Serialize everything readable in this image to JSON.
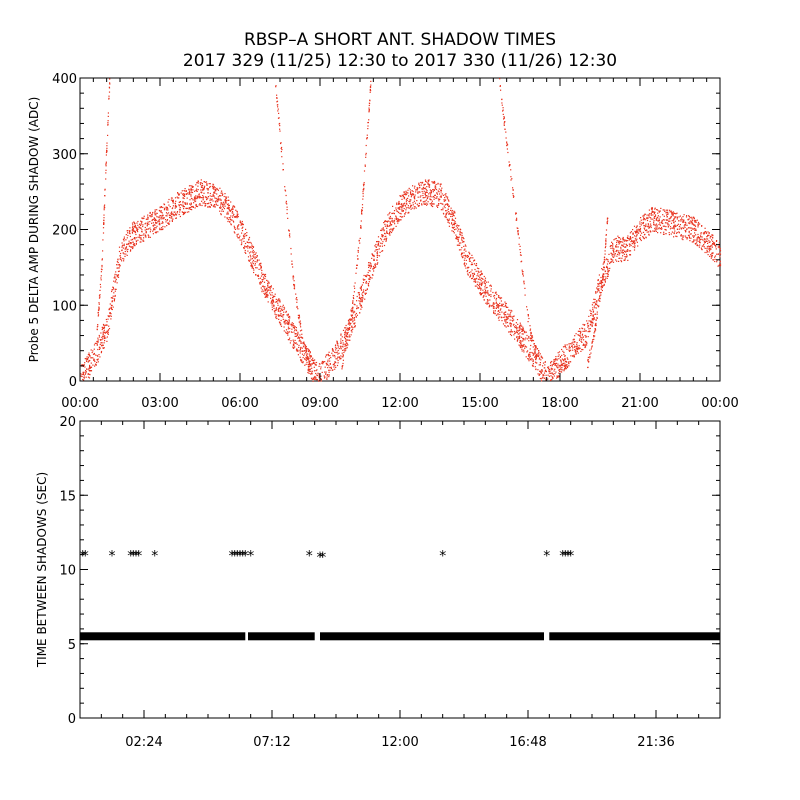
{
  "title": "RBSP–A SHORT ANT. SHADOW TIMES",
  "subtitle": "2017 329 (11/25) 12:30 to 2017 330 (11/26) 12:30",
  "chart_data": [
    {
      "type": "scatter",
      "ylabel": "Probe 5 DELTA AMP DURING SHADOW (ADC)",
      "xlim_hours": [
        0,
        24
      ],
      "ylim": [
        0,
        400
      ],
      "x_tick_labels": [
        "00:00",
        "03:00",
        "06:00",
        "09:00",
        "12:00",
        "15:00",
        "18:00",
        "21:00",
        "00:00"
      ],
      "y_tick_labels": [
        "0",
        "100",
        "200",
        "300",
        "400"
      ],
      "color": "#e8321e",
      "series": [
        {
          "x": [
            0.0,
            0.5,
            1.0,
            1.5,
            2.0,
            2.5,
            3.0,
            3.5,
            4.0,
            4.5,
            5.0,
            5.5,
            6.0,
            6.5,
            7.0,
            7.5,
            8.0,
            8.5,
            8.9
          ],
          "y": [
            5,
            30,
            70,
            170,
            195,
            205,
            215,
            230,
            240,
            250,
            245,
            230,
            200,
            160,
            120,
            90,
            60,
            30,
            5
          ]
        },
        {
          "x": [
            8.9,
            9.5,
            10.0,
            10.5,
            11.0,
            11.5,
            12.0,
            12.5,
            13.0,
            13.5,
            14.0,
            14.5,
            15.0,
            15.5,
            16.0,
            16.5,
            17.0,
            17.5
          ],
          "y": [
            5,
            30,
            60,
            110,
            160,
            205,
            230,
            245,
            250,
            245,
            210,
            160,
            130,
            105,
            85,
            60,
            35,
            5
          ]
        },
        {
          "x": [
            17.5,
            18.0,
            18.5,
            19.0,
            19.5,
            20.0,
            20.5,
            21.0,
            21.5,
            22.0,
            22.5,
            23.0,
            23.5,
            24.0
          ],
          "y": [
            5,
            25,
            45,
            65,
            130,
            175,
            175,
            200,
            215,
            210,
            205,
            200,
            185,
            165
          ]
        },
        {
          "x": [
            0.6,
            0.8,
            0.95,
            1.1
          ],
          "y": [
            60,
            150,
            280,
            400
          ]
        },
        {
          "x": [
            7.3,
            7.6,
            8.0,
            8.3,
            8.6
          ],
          "y": [
            400,
            280,
            130,
            60,
            20
          ]
        },
        {
          "x": [
            9.8,
            10.2,
            10.5,
            10.7,
            10.9
          ],
          "y": [
            20,
            100,
            200,
            300,
            400
          ]
        },
        {
          "x": [
            15.7,
            16.0,
            16.4,
            16.8,
            17.1
          ],
          "y": [
            400,
            310,
            200,
            80,
            30
          ]
        },
        {
          "x": [
            19.0,
            19.3,
            19.6,
            19.8
          ],
          "y": [
            20,
            70,
            140,
            230
          ]
        }
      ]
    },
    {
      "type": "scatter",
      "ylabel": "TIME BETWEEN SHADOWS (SEC)",
      "xlim_hours": [
        0,
        24
      ],
      "ylim": [
        0,
        20
      ],
      "x_tick_hours": [
        2.4,
        7.2,
        12.0,
        16.8,
        21.6
      ],
      "x_tick_labels": [
        "02:24",
        "07:12",
        "12:00",
        "16:48",
        "21:36"
      ],
      "y_tick_labels": [
        "0",
        "5",
        "10",
        "15",
        "20"
      ],
      "marker": "asterisk",
      "baseline_value": 5.5,
      "baseline_segments_hours": [
        [
          0.0,
          6.2
        ],
        [
          6.3,
          8.8
        ],
        [
          9.0,
          17.4
        ],
        [
          17.6,
          24.0
        ]
      ],
      "outliers": {
        "x": [
          0.1,
          0.2,
          1.2,
          1.9,
          2.0,
          2.1,
          2.2,
          2.8,
          5.7,
          5.8,
          5.9,
          6.0,
          6.1,
          6.2,
          6.4,
          8.6,
          9.0,
          9.1,
          13.6,
          17.5,
          18.1,
          18.2,
          18.3,
          18.4
        ],
        "y": [
          11,
          11,
          11,
          11,
          11,
          11,
          11,
          11,
          11,
          11,
          11,
          11,
          11,
          11,
          11,
          11,
          10.9,
          10.9,
          11,
          11,
          11,
          11,
          11,
          11
        ]
      }
    }
  ]
}
